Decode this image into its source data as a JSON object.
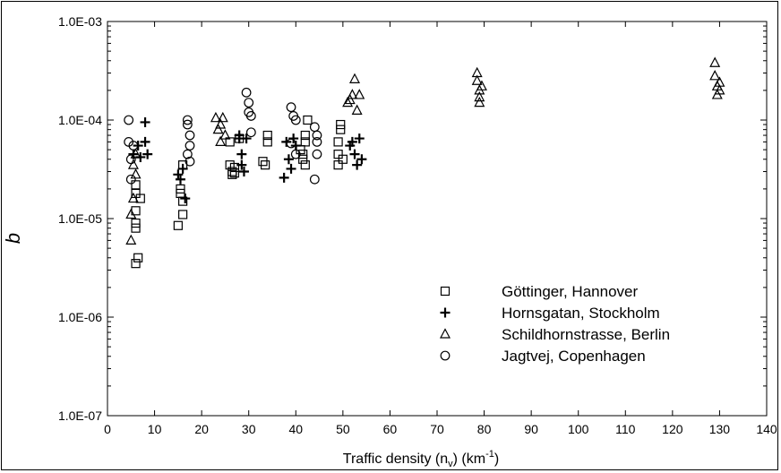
{
  "chart_data": {
    "type": "scatter",
    "title": "",
    "xlabel_main": "Traffic density (n",
    "xlabel_sub": "v",
    "xlabel_mid": ") (km",
    "xlabel_sup": "-1",
    "xlabel_end": ")",
    "ylabel": "b",
    "xlim": [
      0,
      140
    ],
    "ylim": [
      1e-07,
      0.001
    ],
    "y_scale": "log",
    "x_ticks": [
      "0",
      "10",
      "20",
      "30",
      "40",
      "50",
      "60",
      "70",
      "80",
      "90",
      "100",
      "110",
      "120",
      "130",
      "140"
    ],
    "y_ticks": [
      {
        "value": 0.001,
        "label": "1.0E-03"
      },
      {
        "value": 0.0001,
        "label": "1.0E-04"
      },
      {
        "value": 1e-05,
        "label": "1.0E-05"
      },
      {
        "value": 1e-06,
        "label": "1.0E-06"
      },
      {
        "value": 1e-07,
        "label": "1.0E-07"
      }
    ],
    "grid": false,
    "legend_position": "bottom-right",
    "series": [
      {
        "name": "Göttinger, Hannover",
        "marker": "square",
        "points": [
          [
            6,
            2.2e-05
          ],
          [
            6,
            1.8e-05
          ],
          [
            6,
            1.2e-05
          ],
          [
            6,
            9e-06
          ],
          [
            6,
            8e-06
          ],
          [
            6,
            3.5e-06
          ],
          [
            6.5,
            4e-06
          ],
          [
            7,
            1.6e-05
          ],
          [
            15,
            8.5e-06
          ],
          [
            15.5,
            2e-05
          ],
          [
            15.5,
            1.8e-05
          ],
          [
            16,
            1.5e-05
          ],
          [
            16,
            1.1e-05
          ],
          [
            16,
            3.5e-05
          ],
          [
            26,
            6e-05
          ],
          [
            26,
            3.5e-05
          ],
          [
            26.5,
            3e-05
          ],
          [
            26.5,
            2.8e-05
          ],
          [
            27,
            3.3e-05
          ],
          [
            27,
            2.9e-05
          ],
          [
            28,
            6.5e-05
          ],
          [
            33,
            3.8e-05
          ],
          [
            33.5,
            3.5e-05
          ],
          [
            34,
            7e-05
          ],
          [
            34,
            6e-05
          ],
          [
            41,
            5e-05
          ],
          [
            41.5,
            4.5e-05
          ],
          [
            41.5,
            4e-05
          ],
          [
            42,
            3.5e-05
          ],
          [
            42,
            6e-05
          ],
          [
            42,
            7e-05
          ],
          [
            42.5,
            0.0001
          ],
          [
            49,
            4.5e-05
          ],
          [
            49,
            3.5e-05
          ],
          [
            49,
            6e-05
          ],
          [
            49.5,
            8e-05
          ],
          [
            49.5,
            9e-05
          ],
          [
            50,
            4e-05
          ]
        ]
      },
      {
        "name": "Hornsgatan, Stockholm",
        "marker": "plus",
        "points": [
          [
            5.5,
            4.5e-05
          ],
          [
            6.5,
            5.5e-05
          ],
          [
            7,
            4.2e-05
          ],
          [
            8,
            9.5e-05
          ],
          [
            8,
            6e-05
          ],
          [
            8.5,
            4.5e-05
          ],
          [
            15,
            2.8e-05
          ],
          [
            15.5,
            2.5e-05
          ],
          [
            16,
            3.2e-05
          ],
          [
            16.5,
            1.6e-05
          ],
          [
            28,
            7e-05
          ],
          [
            28,
            6.5e-05
          ],
          [
            28.5,
            4.5e-05
          ],
          [
            28.5,
            3.5e-05
          ],
          [
            29,
            3e-05
          ],
          [
            29.5,
            6.5e-05
          ],
          [
            37.5,
            2.6e-05
          ],
          [
            38,
            6e-05
          ],
          [
            38.5,
            4e-05
          ],
          [
            39,
            3.2e-05
          ],
          [
            39.5,
            6.5e-05
          ],
          [
            40,
            5.5e-05
          ],
          [
            51.5,
            5.5e-05
          ],
          [
            52,
            6e-05
          ],
          [
            52.5,
            4.5e-05
          ],
          [
            53,
            3.5e-05
          ],
          [
            53.5,
            6.5e-05
          ],
          [
            54,
            4e-05
          ]
        ]
      },
      {
        "name": "Schildhornstrasse, Berlin",
        "marker": "triangle",
        "points": [
          [
            5,
            6e-06
          ],
          [
            5,
            1.1e-05
          ],
          [
            5.5,
            1.6e-05
          ],
          [
            5.5,
            3.5e-05
          ],
          [
            6,
            4.5e-05
          ],
          [
            6,
            2.8e-05
          ],
          [
            23,
            0.000105
          ],
          [
            23.5,
            8e-05
          ],
          [
            24,
            6e-05
          ],
          [
            24,
            9e-05
          ],
          [
            24.5,
            0.000105
          ],
          [
            25,
            7e-05
          ],
          [
            51,
            0.00015
          ],
          [
            51.5,
            0.00016
          ],
          [
            52,
            0.00018
          ],
          [
            52.5,
            0.00026
          ],
          [
            53,
            0.000125
          ],
          [
            53.5,
            0.00018
          ],
          [
            78.5,
            0.0003
          ],
          [
            78.5,
            0.00025
          ],
          [
            79,
            0.0002
          ],
          [
            79,
            0.00017
          ],
          [
            79,
            0.00015
          ],
          [
            79.5,
            0.00022
          ],
          [
            129,
            0.00038
          ],
          [
            129,
            0.00028
          ],
          [
            129.5,
            0.00022
          ],
          [
            129.5,
            0.00018
          ],
          [
            130,
            0.00024
          ],
          [
            130,
            0.0002
          ]
        ]
      },
      {
        "name": "Jagtvej, Copenhagen",
        "marker": "circle",
        "points": [
          [
            4.5,
            0.0001
          ],
          [
            4.5,
            6e-05
          ],
          [
            5,
            4e-05
          ],
          [
            5,
            2.5e-05
          ],
          [
            5.5,
            5.5e-05
          ],
          [
            17,
            0.0001
          ],
          [
            17,
            9e-05
          ],
          [
            17.5,
            7e-05
          ],
          [
            17.5,
            5.5e-05
          ],
          [
            17,
            4.5e-05
          ],
          [
            17.5,
            3.8e-05
          ],
          [
            29.5,
            0.00019
          ],
          [
            30,
            0.00015
          ],
          [
            30,
            0.00012
          ],
          [
            30.5,
            0.00011
          ],
          [
            30.5,
            7.5e-05
          ],
          [
            39,
            0.000135
          ],
          [
            39.5,
            0.00011
          ],
          [
            40,
            0.0001
          ],
          [
            39,
            5.8e-05
          ],
          [
            40,
            4.5e-05
          ],
          [
            44,
            8.5e-05
          ],
          [
            44.5,
            7e-05
          ],
          [
            44.5,
            6e-05
          ],
          [
            44.5,
            4.5e-05
          ],
          [
            44,
            2.5e-05
          ]
        ]
      }
    ]
  }
}
